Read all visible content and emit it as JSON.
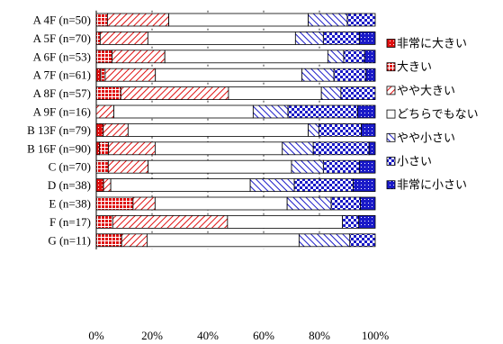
{
  "chart_data": {
    "type": "bar",
    "orientation": "horizontal",
    "stacked": true,
    "title": "",
    "xlabel": "",
    "ylabel": "",
    "xlim": [
      0,
      100
    ],
    "x_ticks": [
      "0%",
      "20%",
      "40%",
      "60%",
      "80%",
      "100%"
    ],
    "grid": "vertical dotted",
    "legend_position": "right",
    "categories": [
      "A 4F (n=50)",
      "A 5F (n=70)",
      "A 6F (n=53)",
      "A 7F (n=61)",
      "A 8F (n=57)",
      "A 9F (n=16)",
      "B 13F (n=79)",
      "B 16F (n=90)",
      "C (n=70)",
      "D (n=38)",
      "E (n=38)",
      "F (n=17)",
      "G (n=11)"
    ],
    "series": [
      {
        "name": "非常に大きい",
        "color": "#e01010",
        "pattern": "solid-dots",
        "values": [
          0,
          0,
          0,
          1.6,
          0,
          0,
          2.5,
          1.1,
          0,
          2.6,
          0,
          0,
          0
        ]
      },
      {
        "name": "大きい",
        "color": "#e01010",
        "pattern": "grid",
        "values": [
          4,
          1.4,
          5.7,
          1.6,
          8.8,
          0,
          0,
          3.3,
          4.3,
          0,
          13.2,
          5.9,
          9.1
        ]
      },
      {
        "name": "やや大きい",
        "color": "#e01010",
        "pattern": "diagonal",
        "values": [
          22,
          17.1,
          18.9,
          18,
          38.6,
          6.3,
          8.9,
          16.7,
          14.3,
          2.6,
          7.9,
          41.2,
          9.1
        ]
      },
      {
        "name": "どちらでもない",
        "color": "#ffffff",
        "pattern": "none",
        "values": [
          50,
          52.9,
          58.5,
          52.5,
          33.3,
          50,
          64.6,
          45.6,
          51.4,
          50,
          47.4,
          41.2,
          54.5
        ]
      },
      {
        "name": "やや小さい",
        "color": "#1a1ac8",
        "pattern": "diagonal",
        "values": [
          14,
          10,
          5.7,
          11.5,
          7,
          12.5,
          3.8,
          11.1,
          11.4,
          15.8,
          15.8,
          0,
          18.2
        ]
      },
      {
        "name": "小さい",
        "color": "#1a1ac8",
        "pattern": "checker",
        "values": [
          10,
          12.9,
          7.5,
          11.5,
          12.3,
          25,
          15.2,
          20,
          12.9,
          21.1,
          10.5,
          5.9,
          9.1
        ]
      },
      {
        "name": "非常に小さい",
        "color": "#1a1ac8",
        "pattern": "solid-dots",
        "values": [
          0,
          5.7,
          3.8,
          3.3,
          0,
          6.3,
          5,
          2.2,
          5.7,
          7.9,
          5.3,
          5.9,
          0
        ]
      }
    ]
  }
}
